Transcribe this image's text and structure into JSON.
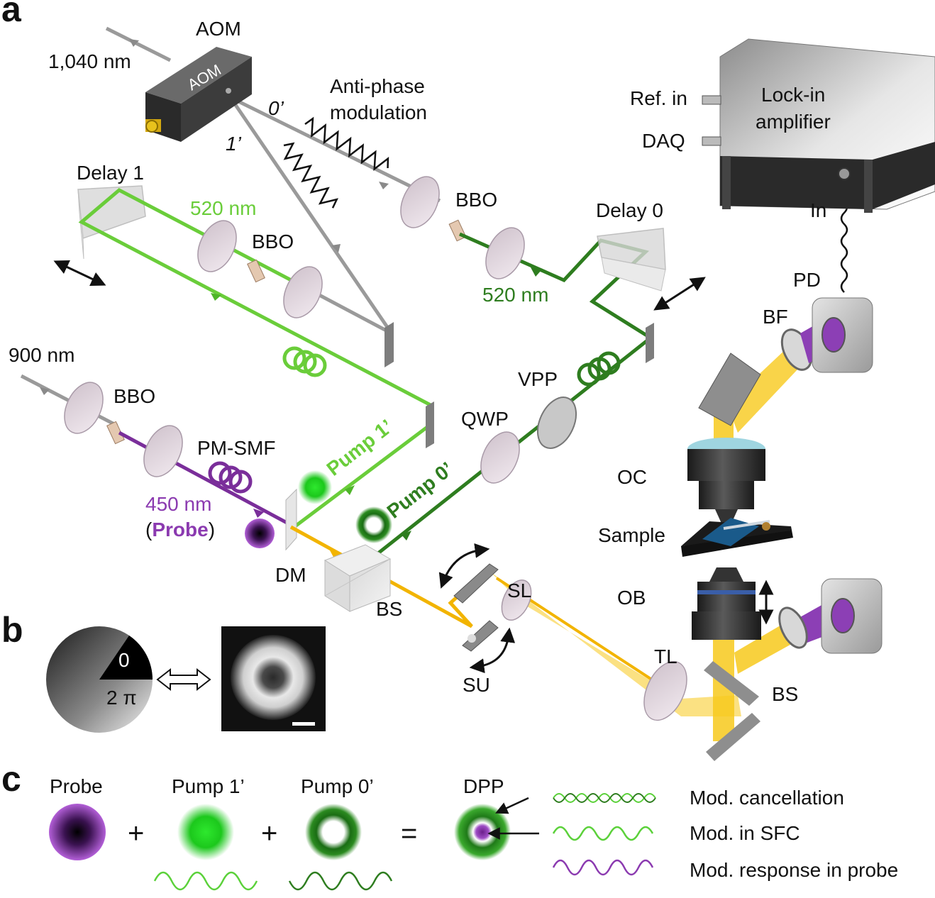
{
  "panels": {
    "a": "a",
    "b": "b",
    "c": "c"
  },
  "panel_a": {
    "aom_title": "AOM",
    "aom_box_text": "AOM",
    "wl_1040": "1,040 nm",
    "order0": "0’",
    "order1": "1’",
    "anti_phase_1": "Anti-phase",
    "anti_phase_2": "modulation",
    "bbo": "BBO",
    "delay1": "Delay 1",
    "delay0": "Delay 0",
    "wl_520": "520 nm",
    "wl_900": "900 nm",
    "pm_smf": "PM-SMF",
    "wl_450": "450 nm",
    "probe_open": "(",
    "probe_word": "Probe",
    "probe_close": ")",
    "pump1": "Pump 1’",
    "pump0": "Pump 0’",
    "qwp": "QWP",
    "vpp": "VPP",
    "dm": "DM",
    "bs": "BS",
    "sl": "SL",
    "su": "SU",
    "tl": "TL",
    "ob": "OB",
    "oc": "OC",
    "sample": "Sample",
    "bf": "BF",
    "pd": "PD",
    "in": "In",
    "ref_in": "Ref. in",
    "daq": "DAQ",
    "lockin_1": "Lock-in",
    "lockin_2": "amplifier"
  },
  "panel_b": {
    "phase_0": "0",
    "phase_2pi": "2 π"
  },
  "panel_c": {
    "probe": "Probe",
    "pump1": "Pump 1’",
    "pump0": "Pump 0’",
    "dpp": "DPP",
    "plus": "+",
    "equals": "=",
    "mod_cancel": "Mod. cancellation",
    "mod_sfc": "Mod. in SFC",
    "mod_resp": "Mod. response in probe"
  },
  "colors": {
    "gray_beam": "#9a9a9a",
    "light_green": "#6acd3a",
    "dark_green": "#2e7d1f",
    "purple": "#7a2e9a",
    "yellow": "#f2b400"
  }
}
